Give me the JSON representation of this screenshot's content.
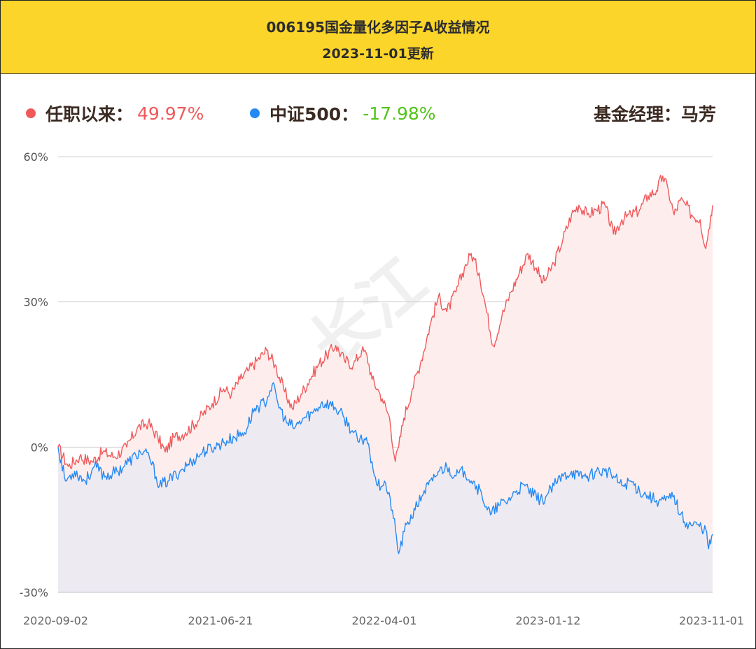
{
  "header": {
    "title": "006195国金量化多因子A收益情况",
    "date": "2023-11-01更新"
  },
  "legend": {
    "fund_label": "任职以来：",
    "fund_value": "49.97%",
    "index_label": "中证500：",
    "index_value": "-17.98%",
    "manager": "基金经理：马芳"
  },
  "watermark": "长江",
  "colors": {
    "fund": "#f0595b",
    "index": "#2389f3",
    "positive_text": "#f0595b",
    "negative_text": "#52c41a",
    "fund_fill": "#fdeeed",
    "index_fill": "#ece9f2",
    "header_bg": "#fcd52a"
  },
  "chart_data": {
    "type": "line",
    "y_ticks": [
      "60%",
      "30%",
      "0%",
      "-30%"
    ],
    "x_ticks": [
      "2020-09-02",
      "2021-06-21",
      "2022-04-01",
      "2023-01-12",
      "2023-11-01"
    ],
    "ylim": [
      -30,
      60
    ],
    "xlim": [
      "2020-09-02",
      "2023-11-01"
    ],
    "grid": true,
    "series": [
      {
        "name": "任职以来",
        "points": [
          [
            "2020-09-02",
            0
          ],
          [
            "2020-09-20",
            -4
          ],
          [
            "2020-10-10",
            -2
          ],
          [
            "2020-11-01",
            -3
          ],
          [
            "2020-11-20",
            -1
          ],
          [
            "2020-12-10",
            -2
          ],
          [
            "2021-01-01",
            0
          ],
          [
            "2021-01-20",
            4
          ],
          [
            "2021-02-08",
            5
          ],
          [
            "2021-02-25",
            2
          ],
          [
            "2021-03-10",
            -1
          ],
          [
            "2021-03-25",
            2
          ],
          [
            "2021-04-15",
            3
          ],
          [
            "2021-05-10",
            6
          ],
          [
            "2021-06-01",
            9
          ],
          [
            "2021-06-21",
            12
          ],
          [
            "2021-07-05",
            11
          ],
          [
            "2021-07-20",
            14
          ],
          [
            "2021-08-05",
            16
          ],
          [
            "2021-08-20",
            18
          ],
          [
            "2021-09-05",
            20
          ],
          [
            "2021-09-20",
            17
          ],
          [
            "2021-10-05",
            12
          ],
          [
            "2021-10-20",
            8
          ],
          [
            "2021-11-05",
            11
          ],
          [
            "2021-11-20",
            14
          ],
          [
            "2021-12-05",
            17
          ],
          [
            "2021-12-20",
            19
          ],
          [
            "2022-01-05",
            21
          ],
          [
            "2022-01-20",
            18
          ],
          [
            "2022-02-05",
            17
          ],
          [
            "2022-02-20",
            20
          ],
          [
            "2022-03-01",
            19
          ],
          [
            "2022-03-10",
            14
          ],
          [
            "2022-03-20",
            12
          ],
          [
            "2022-03-28",
            10
          ],
          [
            "2022-04-10",
            6
          ],
          [
            "2022-04-20",
            -3
          ],
          [
            "2022-04-26",
            0
          ],
          [
            "2022-05-05",
            6
          ],
          [
            "2022-05-20",
            12
          ],
          [
            "2022-06-05",
            18
          ],
          [
            "2022-06-20",
            25
          ],
          [
            "2022-07-05",
            31
          ],
          [
            "2022-07-20",
            28
          ],
          [
            "2022-08-05",
            32
          ],
          [
            "2022-08-20",
            37
          ],
          [
            "2022-09-01",
            40
          ],
          [
            "2022-09-15",
            36
          ],
          [
            "2022-09-25",
            30
          ],
          [
            "2022-10-10",
            21
          ],
          [
            "2022-10-25",
            27
          ],
          [
            "2022-11-10",
            32
          ],
          [
            "2022-11-25",
            36
          ],
          [
            "2022-12-10",
            40
          ],
          [
            "2022-12-25",
            37
          ],
          [
            "2023-01-05",
            34
          ],
          [
            "2023-01-12",
            35
          ],
          [
            "2023-01-25",
            38
          ],
          [
            "2023-02-10",
            43
          ],
          [
            "2023-02-25",
            48
          ],
          [
            "2023-03-10",
            50
          ],
          [
            "2023-03-25",
            48
          ],
          [
            "2023-04-10",
            49
          ],
          [
            "2023-04-25",
            50
          ],
          [
            "2023-05-10",
            44
          ],
          [
            "2023-05-25",
            47
          ],
          [
            "2023-06-10",
            48
          ],
          [
            "2023-06-25",
            49
          ],
          [
            "2023-07-10",
            52
          ],
          [
            "2023-07-25",
            53
          ],
          [
            "2023-08-05",
            56
          ],
          [
            "2023-08-15",
            53
          ],
          [
            "2023-08-25",
            48
          ],
          [
            "2023-09-05",
            51
          ],
          [
            "2023-09-15",
            50
          ],
          [
            "2023-09-25",
            48
          ],
          [
            "2023-10-10",
            47
          ],
          [
            "2023-10-20",
            41
          ],
          [
            "2023-10-25",
            45
          ],
          [
            "2023-11-01",
            49.97
          ]
        ]
      },
      {
        "name": "中证500",
        "points": [
          [
            "2020-09-02",
            0
          ],
          [
            "2020-09-15",
            -7
          ],
          [
            "2020-10-01",
            -5
          ],
          [
            "2020-10-20",
            -7
          ],
          [
            "2020-11-05",
            -4
          ],
          [
            "2020-11-25",
            -6
          ],
          [
            "2020-12-15",
            -5
          ],
          [
            "2021-01-05",
            -3
          ],
          [
            "2021-01-25",
            -1
          ],
          [
            "2021-02-10",
            -2
          ],
          [
            "2021-02-28",
            -8
          ],
          [
            "2021-03-15",
            -7
          ],
          [
            "2021-04-05",
            -5
          ],
          [
            "2021-04-25",
            -3
          ],
          [
            "2021-05-15",
            -1
          ],
          [
            "2021-06-05",
            0
          ],
          [
            "2021-06-21",
            1
          ],
          [
            "2021-07-10",
            2
          ],
          [
            "2021-07-28",
            3
          ],
          [
            "2021-08-15",
            8
          ],
          [
            "2021-09-01",
            9
          ],
          [
            "2021-09-15",
            13
          ],
          [
            "2021-09-25",
            9
          ],
          [
            "2021-10-10",
            5
          ],
          [
            "2021-10-25",
            4
          ],
          [
            "2021-11-10",
            6
          ],
          [
            "2021-11-25",
            7
          ],
          [
            "2021-12-10",
            9
          ],
          [
            "2021-12-25",
            9
          ],
          [
            "2022-01-05",
            8
          ],
          [
            "2022-01-20",
            6
          ],
          [
            "2022-02-05",
            3
          ],
          [
            "2022-02-15",
            1
          ],
          [
            "2022-02-28",
            2
          ],
          [
            "2022-03-10",
            -3
          ],
          [
            "2022-03-20",
            -8
          ],
          [
            "2022-04-01",
            -7
          ],
          [
            "2022-04-15",
            -13
          ],
          [
            "2022-04-26",
            -22
          ],
          [
            "2022-05-10",
            -16
          ],
          [
            "2022-05-25",
            -13
          ],
          [
            "2022-06-10",
            -9
          ],
          [
            "2022-06-25",
            -7
          ],
          [
            "2022-07-05",
            -5
          ],
          [
            "2022-07-20",
            -4
          ],
          [
            "2022-08-05",
            -6
          ],
          [
            "2022-08-20",
            -5
          ],
          [
            "2022-09-05",
            -7
          ],
          [
            "2022-09-20",
            -10
          ],
          [
            "2022-10-05",
            -14
          ],
          [
            "2022-10-20",
            -12
          ],
          [
            "2022-11-05",
            -11
          ],
          [
            "2022-11-20",
            -9
          ],
          [
            "2022-12-05",
            -8
          ],
          [
            "2022-12-20",
            -10
          ],
          [
            "2023-01-05",
            -11
          ],
          [
            "2023-01-12",
            -10
          ],
          [
            "2023-01-25",
            -8
          ],
          [
            "2023-02-10",
            -6
          ],
          [
            "2023-02-25",
            -5
          ],
          [
            "2023-03-10",
            -6
          ],
          [
            "2023-03-25",
            -6
          ],
          [
            "2023-04-10",
            -5
          ],
          [
            "2023-04-25",
            -5
          ],
          [
            "2023-05-10",
            -6
          ],
          [
            "2023-05-25",
            -8
          ],
          [
            "2023-06-10",
            -7
          ],
          [
            "2023-06-25",
            -9
          ],
          [
            "2023-07-10",
            -10
          ],
          [
            "2023-07-25",
            -11
          ],
          [
            "2023-08-10",
            -11
          ],
          [
            "2023-08-25",
            -10
          ],
          [
            "2023-09-05",
            -14
          ],
          [
            "2023-09-20",
            -16
          ],
          [
            "2023-10-05",
            -16
          ],
          [
            "2023-10-20",
            -17
          ],
          [
            "2023-10-25",
            -21
          ],
          [
            "2023-11-01",
            -17.98
          ]
        ]
      }
    ]
  }
}
